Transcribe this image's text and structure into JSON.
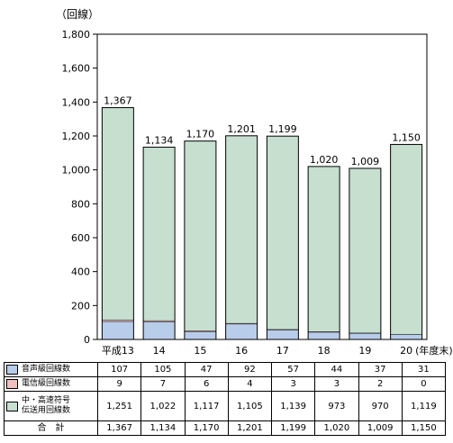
{
  "chart_data": {
    "type": "bar",
    "stacked": true,
    "unit_label": "（回線）",
    "year_suffix": "(年度末)",
    "categories": [
      "平成13",
      "14",
      "15",
      "16",
      "17",
      "18",
      "19",
      "20"
    ],
    "ylim": [
      0,
      1800
    ],
    "yticks": [
      "0",
      "200",
      "400",
      "600",
      "800",
      "1,000",
      "1,200",
      "1,400",
      "1,600",
      "1,800"
    ],
    "series": [
      {
        "name": "音声級回線数",
        "values": [
          107,
          105,
          47,
          92,
          57,
          44,
          37,
          31
        ],
        "labels": [
          "107",
          "105",
          "47",
          "92",
          "57",
          "44",
          "37",
          "31"
        ],
        "color": "#b8cdea"
      },
      {
        "name": "電信級回線数",
        "values": [
          9,
          7,
          6,
          4,
          3,
          3,
          2,
          0
        ],
        "labels": [
          "9",
          "7",
          "6",
          "4",
          "3",
          "3",
          "2",
          "0"
        ],
        "color": "#f0c0c0"
      },
      {
        "name": "中・高速符号伝送用回線数",
        "name_lines": [
          "中・高速符号",
          "伝送用回線数"
        ],
        "values": [
          1251,
          1022,
          1117,
          1105,
          1139,
          973,
          970,
          1119
        ],
        "labels": [
          "1,251",
          "1,022",
          "1,117",
          "1,105",
          "1,139",
          "973",
          "970",
          "1,119"
        ],
        "color": "#c6dfcf"
      }
    ],
    "totals": {
      "name": "合　計",
      "values": [
        1367,
        1134,
        1170,
        1201,
        1199,
        1020,
        1009,
        1150
      ],
      "labels": [
        "1,367",
        "1,134",
        "1,170",
        "1,201",
        "1,199",
        "1,020",
        "1,009",
        "1,150"
      ]
    },
    "grid": false,
    "legend": "table-below"
  }
}
